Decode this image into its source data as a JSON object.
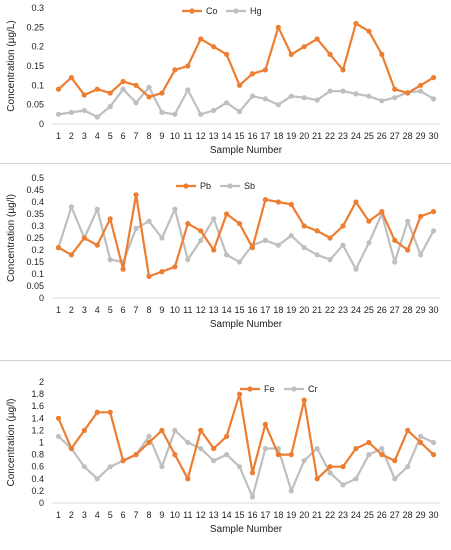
{
  "chart_data": [
    {
      "type": "line",
      "xlabel": "Sample Number",
      "ylabel": "Concentration (µg/L)",
      "ylim": [
        0,
        0.3
      ],
      "yticks": [
        "0",
        "0.05",
        "0.1",
        "0.15",
        "0.2",
        "0.25",
        "0.3"
      ],
      "x": [
        1,
        2,
        3,
        4,
        5,
        6,
        7,
        8,
        9,
        10,
        11,
        12,
        13,
        14,
        15,
        16,
        17,
        18,
        19,
        20,
        21,
        22,
        23,
        24,
        25,
        26,
        27,
        28,
        29,
        30
      ],
      "legend_position": "top-right",
      "grid": false,
      "series": [
        {
          "name": "Co",
          "color": "#ED7D31",
          "values": [
            0.09,
            0.12,
            0.075,
            0.09,
            0.08,
            0.11,
            0.1,
            0.07,
            0.08,
            0.14,
            0.15,
            0.22,
            0.2,
            0.18,
            0.1,
            0.13,
            0.14,
            0.25,
            0.18,
            0.2,
            0.22,
            0.18,
            0.14,
            0.26,
            0.24,
            0.18,
            0.09,
            0.08,
            0.1,
            0.12
          ]
        },
        {
          "name": "Hg",
          "color": "#BFBFBF",
          "values": [
            0.025,
            0.03,
            0.035,
            0.018,
            0.045,
            0.09,
            0.055,
            0.095,
            0.03,
            0.025,
            0.088,
            0.025,
            0.035,
            0.055,
            0.032,
            0.072,
            0.065,
            0.05,
            0.072,
            0.068,
            0.062,
            0.085,
            0.085,
            0.078,
            0.072,
            0.06,
            0.068,
            0.082,
            0.085,
            0.065
          ]
        }
      ]
    },
    {
      "type": "line",
      "xlabel": "Sample Number",
      "ylabel": "Concentration (µg/l)",
      "ylim": [
        0,
        0.5
      ],
      "yticks": [
        "0",
        "0.05",
        "0.1",
        "0.15",
        "0.2",
        "0.25",
        "0.3",
        "0.35",
        "0.4",
        "0.45",
        "0.5"
      ],
      "x": [
        1,
        2,
        3,
        4,
        5,
        6,
        7,
        8,
        9,
        10,
        11,
        12,
        13,
        14,
        15,
        16,
        17,
        18,
        19,
        20,
        21,
        22,
        23,
        24,
        25,
        26,
        27,
        28,
        29,
        30
      ],
      "legend_position": "top-right",
      "grid": false,
      "series": [
        {
          "name": "Pb",
          "color": "#ED7D31",
          "values": [
            0.21,
            0.18,
            0.25,
            0.22,
            0.33,
            0.12,
            0.43,
            0.09,
            0.11,
            0.13,
            0.31,
            0.28,
            0.2,
            0.35,
            0.31,
            0.21,
            0.41,
            0.4,
            0.39,
            0.3,
            0.28,
            0.25,
            0.3,
            0.4,
            0.32,
            0.36,
            0.24,
            0.2,
            0.34,
            0.36
          ]
        },
        {
          "name": "Sb",
          "color": "#BFBFBF",
          "values": [
            0.21,
            0.38,
            0.25,
            0.37,
            0.16,
            0.15,
            0.29,
            0.32,
            0.25,
            0.37,
            0.16,
            0.24,
            0.33,
            0.18,
            0.15,
            0.22,
            0.24,
            0.22,
            0.26,
            0.21,
            0.18,
            0.16,
            0.22,
            0.12,
            0.23,
            0.35,
            0.15,
            0.32,
            0.18,
            0.28
          ]
        }
      ]
    },
    {
      "type": "line",
      "xlabel": "Sample Number",
      "ylabel": "Concentration (µg/l)",
      "ylim": [
        0,
        2
      ],
      "yticks": [
        "0",
        "0.2",
        "0.4",
        "0.6",
        "0.8",
        "1",
        "1.2",
        "1.4",
        "1.6",
        "1.8",
        "2"
      ],
      "x": [
        1,
        2,
        3,
        4,
        5,
        6,
        7,
        8,
        9,
        10,
        11,
        12,
        13,
        14,
        15,
        16,
        17,
        18,
        19,
        20,
        21,
        22,
        23,
        24,
        25,
        26,
        27,
        28,
        29,
        30
      ],
      "legend_position": "top-right",
      "grid": false,
      "series": [
        {
          "name": "Fe",
          "color": "#ED7D31",
          "values": [
            1.4,
            0.9,
            1.2,
            1.5,
            1.5,
            0.7,
            0.8,
            1.0,
            1.2,
            0.8,
            0.4,
            1.2,
            0.9,
            1.1,
            1.8,
            0.5,
            1.3,
            0.8,
            0.8,
            1.7,
            0.4,
            0.6,
            0.6,
            0.9,
            1.0,
            0.8,
            0.7,
            1.2,
            1.0,
            0.8
          ]
        },
        {
          "name": "Cr",
          "color": "#BFBFBF",
          "values": [
            1.1,
            0.9,
            0.6,
            0.4,
            0.6,
            0.7,
            0.8,
            1.1,
            0.6,
            1.2,
            1.0,
            0.9,
            0.7,
            0.8,
            0.6,
            0.1,
            0.9,
            0.9,
            0.2,
            0.7,
            0.9,
            0.5,
            0.3,
            0.4,
            0.8,
            0.9,
            0.4,
            0.6,
            1.1,
            1.0
          ]
        }
      ]
    }
  ]
}
